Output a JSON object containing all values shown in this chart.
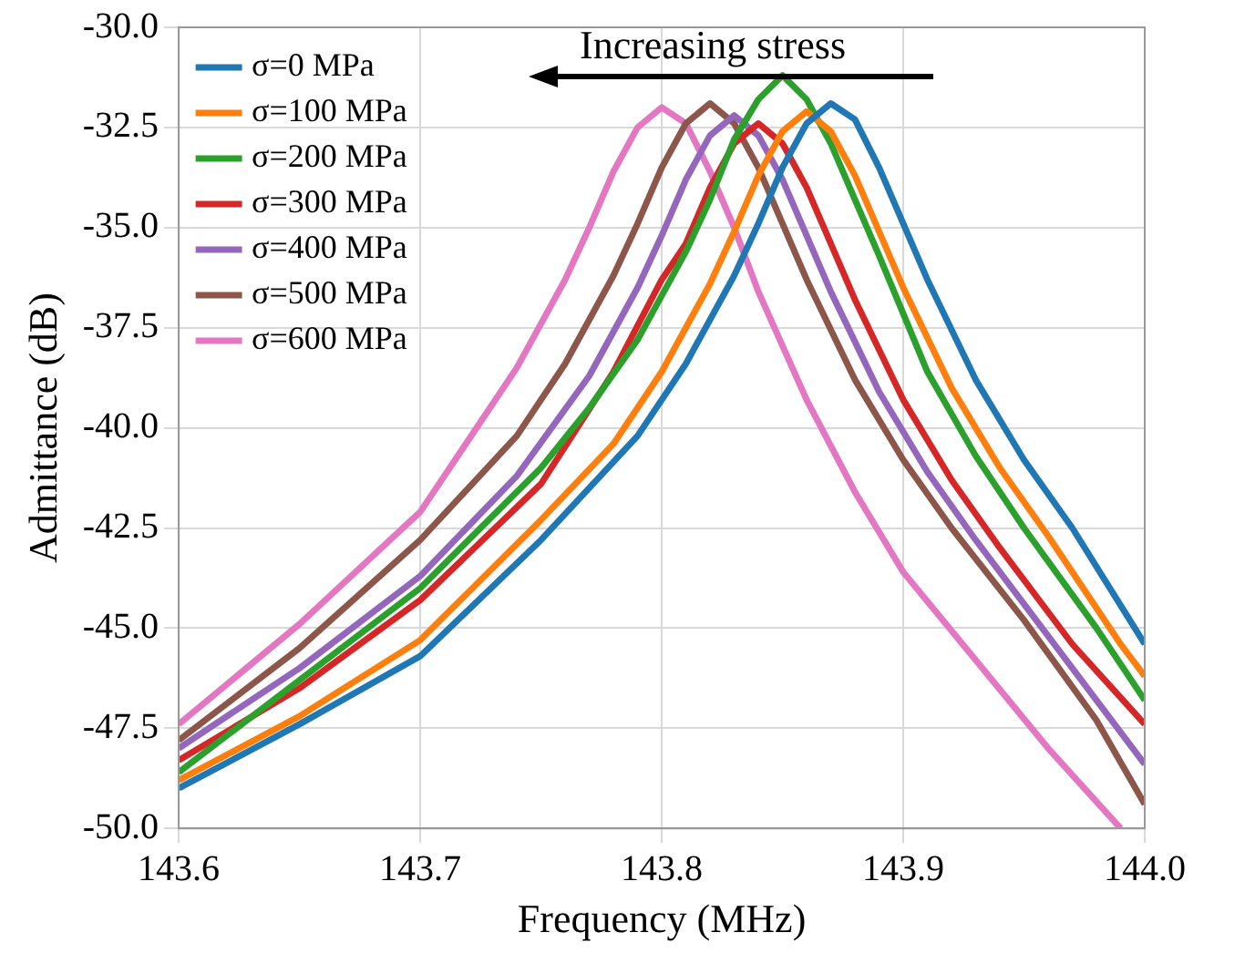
{
  "chart_data": {
    "type": "line",
    "xlabel": "Frequency (MHz)",
    "ylabel": "Admittance (dB)",
    "annotations": [
      "Increasing stress"
    ],
    "xlim": [
      143.6,
      144.0
    ],
    "xticks": [
      {
        "value": 143.6,
        "label": "143.6"
      },
      {
        "value": 143.7,
        "label": "143.7"
      },
      {
        "value": 143.8,
        "label": "143.8"
      },
      {
        "value": 143.9,
        "label": "143.9"
      },
      {
        "value": 144.0,
        "label": "144.0"
      }
    ],
    "ylim": [
      -50,
      -30
    ],
    "yticks": [
      {
        "value": -50,
        "label": "-50.0"
      },
      {
        "value": -47.5,
        "label": "-47.5"
      },
      {
        "value": -45,
        "label": "-45.0"
      },
      {
        "value": -42.5,
        "label": "-42.5"
      },
      {
        "value": -40,
        "label": "-40.0"
      },
      {
        "value": -37.5,
        "label": "-37.5"
      },
      {
        "value": -35,
        "label": "-35.0"
      },
      {
        "value": -32.5,
        "label": "-32.5"
      },
      {
        "value": -30,
        "label": "-30.0"
      }
    ],
    "grid": true,
    "legend": "top left",
    "marker": "none",
    "line_style": "solid",
    "series": [
      {
        "name": "σ=0 MPa",
        "color": "#1f77b4",
        "x": [
          143.6,
          143.65,
          143.7,
          143.75,
          143.79,
          143.81,
          143.83,
          143.84,
          143.85,
          143.86,
          143.87,
          143.88,
          143.89,
          143.9,
          143.91,
          143.93,
          143.95,
          143.97,
          144.0
        ],
        "values": [
          -49.0,
          -47.4,
          -45.7,
          -42.8,
          -40.2,
          -38.4,
          -36.2,
          -34.9,
          -33.5,
          -32.4,
          -31.9,
          -32.3,
          -33.5,
          -34.9,
          -36.3,
          -38.8,
          -40.8,
          -42.5,
          -45.4
        ]
      },
      {
        "name": "σ=100 MPa",
        "color": "#ff7f0e",
        "x": [
          143.6,
          143.65,
          143.7,
          143.75,
          143.78,
          143.8,
          143.82,
          143.83,
          143.84,
          143.85,
          143.86,
          143.87,
          143.88,
          143.89,
          143.9,
          143.92,
          143.94,
          143.96,
          143.99,
          144.0
        ],
        "values": [
          -48.8,
          -47.2,
          -45.3,
          -42.3,
          -40.4,
          -38.6,
          -36.4,
          -35.1,
          -33.7,
          -32.6,
          -32.1,
          -32.6,
          -33.7,
          -35.1,
          -36.5,
          -39.0,
          -41.0,
          -42.7,
          -45.4,
          -46.2
        ]
      },
      {
        "name": "σ=200 MPa",
        "color": "#2ca02c",
        "x": [
          143.6,
          143.65,
          143.7,
          143.75,
          143.77,
          143.79,
          143.81,
          143.82,
          143.83,
          143.84,
          143.85,
          143.86,
          143.87,
          143.88,
          143.89,
          143.91,
          143.93,
          143.95,
          143.98,
          144.0
        ],
        "values": [
          -48.6,
          -46.3,
          -44.0,
          -41.0,
          -39.5,
          -37.8,
          -35.6,
          -34.3,
          -32.8,
          -31.8,
          -31.2,
          -31.8,
          -32.9,
          -34.3,
          -35.7,
          -38.6,
          -40.7,
          -42.5,
          -45.0,
          -46.8
        ]
      },
      {
        "name": "σ=300 MPa",
        "color": "#d62728",
        "x": [
          143.6,
          143.65,
          143.7,
          143.75,
          143.78,
          143.8,
          143.81,
          143.82,
          143.83,
          143.84,
          143.85,
          143.86,
          143.87,
          143.88,
          143.9,
          143.92,
          143.94,
          143.97,
          144.0
        ],
        "values": [
          -48.3,
          -46.5,
          -44.3,
          -41.4,
          -38.6,
          -36.3,
          -35.4,
          -34.0,
          -32.9,
          -32.4,
          -32.9,
          -34.0,
          -35.4,
          -36.8,
          -39.3,
          -41.3,
          -43.0,
          -45.4,
          -47.4
        ]
      },
      {
        "name": "σ=400 MPa",
        "color": "#9467bd",
        "x": [
          143.6,
          143.65,
          143.7,
          143.74,
          143.77,
          143.79,
          143.8,
          143.81,
          143.82,
          143.83,
          143.84,
          143.85,
          143.86,
          143.87,
          143.89,
          143.91,
          143.93,
          143.96,
          144.0
        ],
        "values": [
          -48.0,
          -46.0,
          -43.7,
          -41.2,
          -38.7,
          -36.5,
          -35.2,
          -33.8,
          -32.7,
          -32.2,
          -32.7,
          -33.8,
          -35.2,
          -36.6,
          -39.1,
          -41.1,
          -42.8,
          -45.2,
          -48.4
        ]
      },
      {
        "name": "σ=500 MPa",
        "color": "#8c564b",
        "x": [
          143.6,
          143.65,
          143.7,
          143.74,
          143.76,
          143.78,
          143.79,
          143.8,
          143.81,
          143.82,
          143.83,
          143.84,
          143.85,
          143.86,
          143.88,
          143.9,
          143.92,
          143.95,
          143.98,
          144.0
        ],
        "values": [
          -47.8,
          -45.5,
          -42.8,
          -40.2,
          -38.4,
          -36.2,
          -34.9,
          -33.5,
          -32.4,
          -31.9,
          -32.4,
          -33.5,
          -34.9,
          -36.3,
          -38.8,
          -40.8,
          -42.5,
          -44.8,
          -47.3,
          -49.4
        ]
      },
      {
        "name": "σ=600 MPa",
        "color": "#e377c2",
        "x": [
          143.6,
          143.65,
          143.7,
          143.73,
          143.74,
          143.76,
          143.77,
          143.78,
          143.79,
          143.8,
          143.81,
          143.82,
          143.83,
          143.84,
          143.86,
          143.88,
          143.9,
          143.93,
          143.96,
          143.99
        ],
        "values": [
          -47.4,
          -44.9,
          -42.1,
          -39.4,
          -38.5,
          -36.3,
          -35.0,
          -33.6,
          -32.5,
          -32.0,
          -32.4,
          -33.6,
          -35.0,
          -36.6,
          -39.3,
          -41.6,
          -43.6,
          -45.8,
          -48.0,
          -50.0
        ]
      }
    ]
  }
}
